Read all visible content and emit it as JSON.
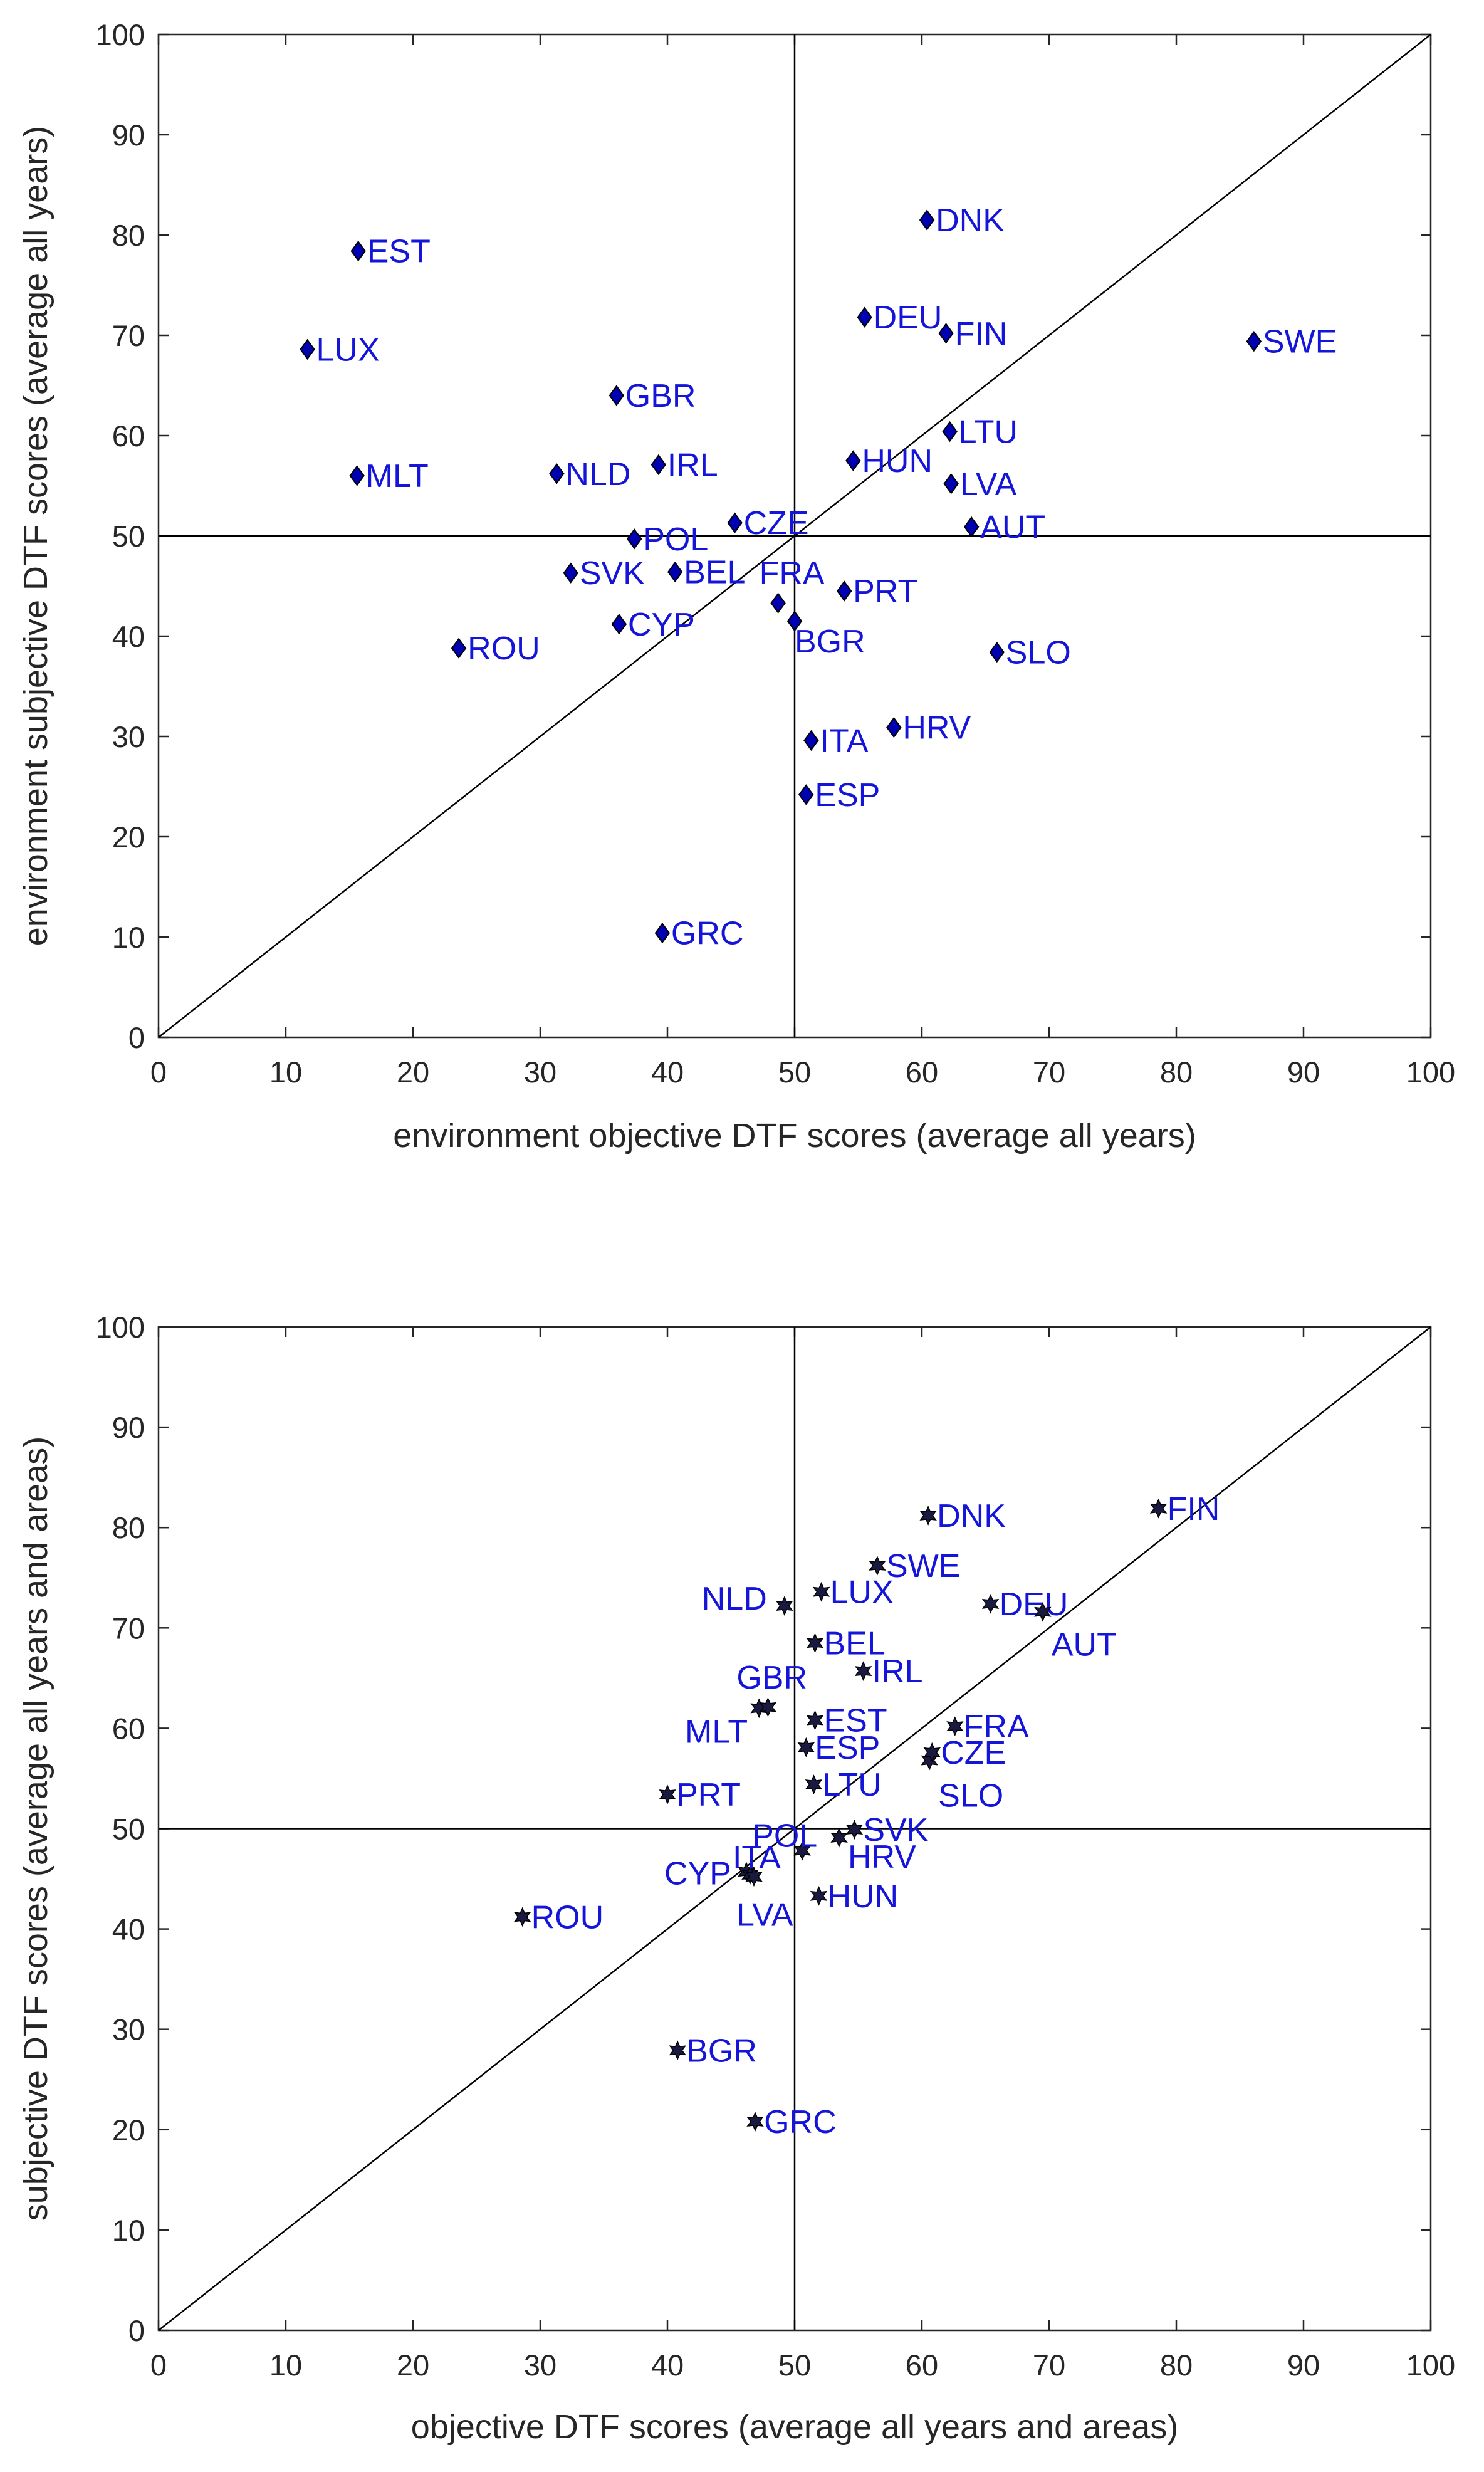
{
  "colors": {
    "label": "#1515d9",
    "axis": "#262626",
    "marker_fill": "#0000b3",
    "marker_edge": "#000000"
  },
  "chart_data": [
    {
      "type": "scatter",
      "title": "",
      "xlabel": "environment objective DTF scores (average all years)",
      "ylabel": "environment subjective DTF scores (average all years)",
      "xlim": [
        0,
        100
      ],
      "ylim": [
        0,
        100
      ],
      "xticks": [
        "0",
        "10",
        "20",
        "30",
        "40",
        "50",
        "60",
        "70",
        "80",
        "90",
        "100"
      ],
      "yticks": [
        "0",
        "10",
        "20",
        "30",
        "40",
        "50",
        "60",
        "70",
        "80",
        "90",
        "100"
      ],
      "reference_lines": {
        "vertical": 50,
        "horizontal": 50,
        "diagonal": "y = x"
      },
      "marker": "diamond",
      "points": [
        {
          "label": "EST",
          "x": 15.7,
          "y": 78.4
        },
        {
          "label": "LUX",
          "x": 11.7,
          "y": 68.6
        },
        {
          "label": "MLT",
          "x": 15.6,
          "y": 56.0
        },
        {
          "label": "ROU",
          "x": 23.6,
          "y": 38.8
        },
        {
          "label": "GBR",
          "x": 36.0,
          "y": 64.0
        },
        {
          "label": "NLD",
          "x": 31.3,
          "y": 56.2
        },
        {
          "label": "IRL",
          "x": 39.3,
          "y": 57.1
        },
        {
          "label": "POL",
          "x": 37.4,
          "y": 49.7
        },
        {
          "label": "SVK",
          "x": 32.4,
          "y": 46.3
        },
        {
          "label": "BEL",
          "x": 40.6,
          "y": 46.4
        },
        {
          "label": "CYP",
          "x": 36.2,
          "y": 41.2
        },
        {
          "label": "CZE",
          "x": 45.3,
          "y": 51.3
        },
        {
          "label": "FRA",
          "x": 48.7,
          "y": 43.3
        },
        {
          "label": "BGR",
          "x": 50.0,
          "y": 41.5
        },
        {
          "label": "GRC",
          "x": 39.6,
          "y": 10.4
        },
        {
          "label": "ITA",
          "x": 51.3,
          "y": 29.6
        },
        {
          "label": "ESP",
          "x": 50.9,
          "y": 24.2
        },
        {
          "label": "PRT",
          "x": 53.9,
          "y": 44.5
        },
        {
          "label": "HUN",
          "x": 54.6,
          "y": 57.5
        },
        {
          "label": "DEU",
          "x": 55.5,
          "y": 71.8
        },
        {
          "label": "DNK",
          "x": 60.4,
          "y": 81.5
        },
        {
          "label": "FIN",
          "x": 61.9,
          "y": 70.2
        },
        {
          "label": "LTU",
          "x": 62.2,
          "y": 60.4
        },
        {
          "label": "LVA",
          "x": 62.3,
          "y": 55.2
        },
        {
          "label": "AUT",
          "x": 63.9,
          "y": 50.9
        },
        {
          "label": "HRV",
          "x": 57.8,
          "y": 30.9
        },
        {
          "label": "SLO",
          "x": 65.9,
          "y": 38.4
        },
        {
          "label": "SWE",
          "x": 86.1,
          "y": 69.4
        }
      ]
    },
    {
      "type": "scatter",
      "title": "",
      "xlabel": "objective DTF scores (average all years and areas)",
      "ylabel": "subjective DTF scores (average all years and areas)",
      "xlim": [
        0,
        100
      ],
      "ylim": [
        0,
        100
      ],
      "xticks": [
        "0",
        "10",
        "20",
        "30",
        "40",
        "50",
        "60",
        "70",
        "80",
        "90",
        "100"
      ],
      "yticks": [
        "0",
        "10",
        "20",
        "30",
        "40",
        "50",
        "60",
        "70",
        "80",
        "90",
        "100"
      ],
      "reference_lines": {
        "vertical": 50,
        "horizontal": 50,
        "diagonal": "y = x"
      },
      "marker": "hexagram",
      "points": [
        {
          "label": "ROU",
          "x": 28.6,
          "y": 41.2
        },
        {
          "label": "PRT",
          "x": 40.0,
          "y": 53.4
        },
        {
          "label": "BGR",
          "x": 40.8,
          "y": 27.9
        },
        {
          "label": "CYP",
          "x": 46.2,
          "y": 45.7
        },
        {
          "label": "ITA",
          "x": 46.5,
          "y": 45.4
        },
        {
          "label": "LVA",
          "x": 46.8,
          "y": 45.2
        },
        {
          "label": "GRC",
          "x": 46.9,
          "y": 20.8
        },
        {
          "label": "MLT",
          "x": 47.2,
          "y": 62.0
        },
        {
          "label": "GBR",
          "x": 47.9,
          "y": 62.1
        },
        {
          "label": "NLD",
          "x": 49.2,
          "y": 72.2
        },
        {
          "label": "POL",
          "x": 50.6,
          "y": 47.8
        },
        {
          "label": "ESP",
          "x": 50.9,
          "y": 58.1
        },
        {
          "label": "EST",
          "x": 51.6,
          "y": 60.8
        },
        {
          "label": "LTU",
          "x": 51.5,
          "y": 54.4
        },
        {
          "label": "BEL",
          "x": 51.6,
          "y": 68.5
        },
        {
          "label": "HUN",
          "x": 51.9,
          "y": 43.3
        },
        {
          "label": "LUX",
          "x": 52.1,
          "y": 73.6
        },
        {
          "label": "HRV",
          "x": 53.5,
          "y": 49.1
        },
        {
          "label": "SVK",
          "x": 54.7,
          "y": 49.9
        },
        {
          "label": "IRL",
          "x": 55.4,
          "y": 65.7
        },
        {
          "label": "SWE",
          "x": 56.5,
          "y": 76.2
        },
        {
          "label": "DNK",
          "x": 60.5,
          "y": 81.2
        },
        {
          "label": "SLO",
          "x": 60.6,
          "y": 56.8
        },
        {
          "label": "CZE",
          "x": 60.8,
          "y": 57.6
        },
        {
          "label": "FRA",
          "x": 62.6,
          "y": 60.2
        },
        {
          "label": "DEU",
          "x": 65.4,
          "y": 72.4
        },
        {
          "label": "AUT",
          "x": 69.5,
          "y": 71.6
        },
        {
          "label": "FIN",
          "x": 78.6,
          "y": 81.9
        }
      ]
    }
  ]
}
